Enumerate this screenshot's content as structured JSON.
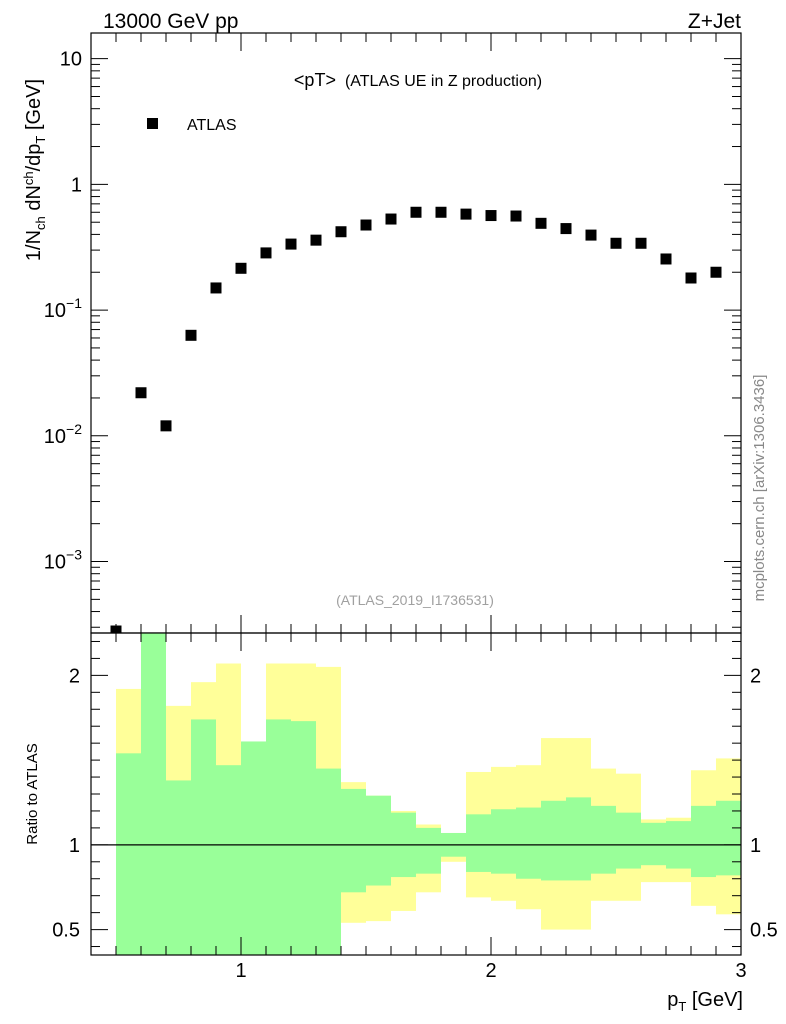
{
  "header": {
    "left": "13000 GeV pp",
    "right": "Z+Jet"
  },
  "side_label": "mcplots.cern.ch [arXiv:1306.3436]",
  "colors": {
    "green_band": "#99ff99",
    "yellow_band": "#ffff99",
    "marker": "#000000"
  },
  "chart_data": [
    {
      "type": "scatter",
      "title": "<pT>",
      "subtitle": "(ATLAS UE in Z production)",
      "analysis_label": "(ATLAS_2019_I1736531)",
      "ylabel": "1/N_ch dN_ch/dp_T [GeV]",
      "ylabel_parts": {
        "a": "1/N",
        "b": "ch",
        "c": " dN",
        "d": "ch",
        "e": "/dp",
        "f": "T",
        "g": " [GeV]"
      },
      "yscale": "log",
      "ylim": [
        0.00027,
        16
      ],
      "xlim": [
        0.4,
        3.0
      ],
      "legend": {
        "entries": [
          "ATLAS"
        ],
        "position": "top-left"
      },
      "ytick_labels": [
        {
          "v": 10,
          "base": "10",
          "exp": ""
        },
        {
          "v": 1,
          "base": "1",
          "exp": ""
        },
        {
          "v": 0.1,
          "base": "10",
          "exp": "−1"
        },
        {
          "v": 0.01,
          "base": "10",
          "exp": "−2"
        },
        {
          "v": 0.001,
          "base": "10",
          "exp": "−3"
        }
      ],
      "series": [
        {
          "name": "ATLAS",
          "x": [
            0.5,
            0.6,
            0.7,
            0.8,
            0.9,
            1.0,
            1.1,
            1.2,
            1.3,
            1.4,
            1.5,
            1.6,
            1.7,
            1.8,
            1.9,
            2.0,
            2.1,
            2.2,
            2.3,
            2.4,
            2.5,
            2.6,
            2.7,
            2.8,
            2.9
          ],
          "y": [
            0.00028,
            0.022,
            0.012,
            0.063,
            0.15,
            0.215,
            0.285,
            0.335,
            0.36,
            0.42,
            0.475,
            0.53,
            0.6,
            0.6,
            0.58,
            0.565,
            0.56,
            0.49,
            0.445,
            0.395,
            0.34,
            0.34,
            0.255,
            0.18,
            0.2
          ]
        }
      ]
    },
    {
      "type": "area",
      "ylabel": "Ratio to ATLAS",
      "xlabel": "p_T [GeV]",
      "xlabel_parts": {
        "a": "p",
        "b": "T",
        "c": " [GeV]"
      },
      "xlim": [
        0.4,
        3.0
      ],
      "ylim": [
        0.35,
        2.25
      ],
      "reference_line": 1.0,
      "xtick_labels": [
        {
          "v": 1,
          "label": "1"
        },
        {
          "v": 2,
          "label": "2"
        },
        {
          "v": 3,
          "label": "3"
        }
      ],
      "ytick_labels": [
        {
          "v": 2,
          "label": "2"
        },
        {
          "v": 1,
          "label": "1"
        },
        {
          "v": 0.5,
          "label": "0.5"
        }
      ],
      "bins": [
        0.55,
        0.65,
        0.75,
        0.85,
        0.95,
        1.05,
        1.15,
        1.25,
        1.35,
        1.45,
        1.55,
        1.65,
        1.75,
        1.85,
        1.95,
        2.05,
        2.15,
        2.25,
        2.35,
        2.45,
        2.55,
        2.65,
        2.75,
        2.85,
        2.95
      ],
      "green_band": {
        "upper": [
          1.54,
          2.25,
          1.38,
          1.74,
          1.47,
          1.61,
          1.74,
          1.73,
          1.45,
          1.33,
          1.29,
          1.19,
          1.1,
          1.07,
          1.18,
          1.21,
          1.22,
          1.26,
          1.28,
          1.23,
          1.19,
          1.13,
          1.14,
          1.23,
          1.26
        ],
        "lower": [
          0.35,
          0.35,
          0.35,
          0.35,
          0.35,
          0.35,
          0.35,
          0.35,
          0.35,
          0.72,
          0.76,
          0.81,
          0.83,
          0.93,
          0.84,
          0.83,
          0.8,
          0.79,
          0.79,
          0.83,
          0.86,
          0.88,
          0.86,
          0.81,
          0.82
        ]
      },
      "yellow_band": {
        "upper": [
          1.92,
          2.25,
          1.82,
          1.96,
          2.07,
          1.41,
          2.07,
          2.07,
          2.05,
          1.37,
          1.29,
          1.2,
          1.12,
          1.07,
          1.43,
          1.46,
          1.47,
          1.63,
          1.63,
          1.45,
          1.42,
          1.15,
          1.16,
          1.44,
          1.51
        ]
      },
      "yellow_band_lower": [
        0.55,
        0.35,
        0.64,
        0.35,
        0.35,
        0.64,
        0.35,
        0.35,
        0.35,
        0.54,
        0.55,
        0.61,
        0.72,
        0.9,
        0.69,
        0.67,
        0.62,
        0.5,
        0.5,
        0.67,
        0.67,
        0.78,
        0.78,
        0.64,
        0.59
      ]
    }
  ]
}
